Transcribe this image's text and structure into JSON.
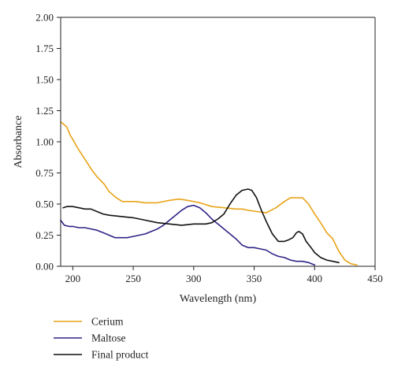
{
  "chart_data": {
    "type": "line",
    "xlabel": "Wavelength (nm)",
    "ylabel": "Absorbance",
    "xlim": [
      190,
      450
    ],
    "ylim": [
      0,
      2
    ],
    "xticks": [
      200,
      250,
      300,
      350,
      400,
      450
    ],
    "yticks": [
      0,
      0.25,
      0.5,
      0.75,
      1.0,
      1.25,
      1.5,
      1.75,
      2.0
    ],
    "xtick_labels": [
      "200",
      "250",
      "300",
      "350",
      "400",
      "450"
    ],
    "ytick_labels": [
      "0.00",
      "0.25",
      "0.50",
      "0.75",
      "1.00",
      "1.25",
      "1.50",
      "1.75",
      "2.00"
    ],
    "grid": false,
    "legend_position": "bottom-left, below axes",
    "series": [
      {
        "name": "Cerium",
        "color": "#E8A317",
        "x": [
          190,
          195,
          198,
          200,
          204,
          210,
          216,
          220,
          226,
          230,
          236,
          241,
          245,
          252,
          260,
          270,
          280,
          288,
          295,
          305,
          315,
          325,
          335,
          340,
          345,
          352,
          360,
          368,
          375,
          380,
          385,
          390,
          395,
          400,
          405,
          410,
          415,
          420,
          425,
          430,
          435
        ],
        "y": [
          1.16,
          1.12,
          1.05,
          1.02,
          0.95,
          0.86,
          0.77,
          0.72,
          0.66,
          0.6,
          0.55,
          0.52,
          0.52,
          0.52,
          0.51,
          0.51,
          0.53,
          0.54,
          0.53,
          0.51,
          0.48,
          0.47,
          0.46,
          0.46,
          0.45,
          0.44,
          0.43,
          0.47,
          0.52,
          0.55,
          0.55,
          0.55,
          0.5,
          0.42,
          0.35,
          0.27,
          0.22,
          0.12,
          0.05,
          0.02,
          0.01
        ]
      },
      {
        "name": "Maltose",
        "color": "#2E2486",
        "x": [
          190,
          193,
          197,
          200,
          205,
          210,
          215,
          220,
          225,
          230,
          235,
          240,
          245,
          250,
          255,
          260,
          265,
          270,
          275,
          280,
          285,
          290,
          295,
          300,
          305,
          310,
          315,
          320,
          325,
          330,
          335,
          340,
          345,
          350,
          355,
          360,
          365,
          370,
          375,
          380,
          385,
          390,
          395,
          400
        ],
        "y": [
          0.37,
          0.33,
          0.32,
          0.32,
          0.31,
          0.31,
          0.3,
          0.29,
          0.27,
          0.25,
          0.23,
          0.23,
          0.23,
          0.24,
          0.25,
          0.26,
          0.28,
          0.3,
          0.33,
          0.37,
          0.41,
          0.45,
          0.48,
          0.49,
          0.47,
          0.43,
          0.38,
          0.34,
          0.3,
          0.26,
          0.22,
          0.17,
          0.15,
          0.15,
          0.14,
          0.13,
          0.1,
          0.08,
          0.07,
          0.05,
          0.04,
          0.04,
          0.03,
          0.01
        ]
      },
      {
        "name": "Final product",
        "color": "#111111",
        "x": [
          192,
          195,
          200,
          205,
          210,
          215,
          220,
          225,
          230,
          240,
          250,
          260,
          270,
          280,
          290,
          300,
          305,
          310,
          315,
          320,
          325,
          330,
          335,
          340,
          345,
          348,
          352,
          356,
          360,
          365,
          370,
          375,
          378,
          382,
          385,
          387,
          390,
          393,
          397,
          400,
          405,
          410,
          415,
          420
        ],
        "y": [
          0.47,
          0.48,
          0.48,
          0.47,
          0.46,
          0.46,
          0.44,
          0.42,
          0.41,
          0.4,
          0.39,
          0.37,
          0.35,
          0.34,
          0.33,
          0.34,
          0.34,
          0.34,
          0.35,
          0.38,
          0.42,
          0.5,
          0.57,
          0.61,
          0.62,
          0.61,
          0.55,
          0.45,
          0.36,
          0.26,
          0.2,
          0.2,
          0.21,
          0.23,
          0.27,
          0.28,
          0.26,
          0.2,
          0.15,
          0.11,
          0.07,
          0.05,
          0.04,
          0.03
        ]
      }
    ]
  }
}
